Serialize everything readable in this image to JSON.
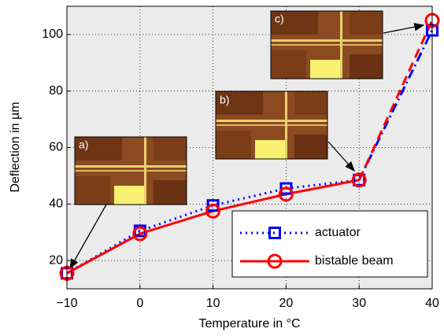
{
  "chart_data": {
    "type": "line",
    "x_label": "Temperature in °C",
    "y_label": "Deflection in µm",
    "x": [
      -10,
      0,
      10,
      20,
      30,
      40
    ],
    "series": [
      {
        "name": "actuator",
        "color": "#0000ff",
        "marker": "square",
        "linestyle": "dotted",
        "last_segment_linestyle": "dashdot",
        "values": [
          15.5,
          30.5,
          39.5,
          45.5,
          48.5,
          101.5
        ]
      },
      {
        "name": "bistable beam",
        "color": "#ff0000",
        "marker": "circle",
        "linestyle": "solid",
        "last_segment_linestyle": "dashed",
        "values": [
          15.5,
          29.5,
          37.5,
          43.5,
          48.5,
          105
        ]
      }
    ],
    "xlim": [
      -10,
      40
    ],
    "xticks": [
      {
        "value": -10,
        "label": "−10"
      },
      0,
      10,
      20,
      30,
      40
    ],
    "ylim": [
      10,
      110
    ],
    "yticks": [
      20,
      40,
      60,
      80,
      100
    ],
    "grid": true,
    "legend": "lower right",
    "insets": [
      "a)",
      "b)",
      "c)"
    ]
  }
}
